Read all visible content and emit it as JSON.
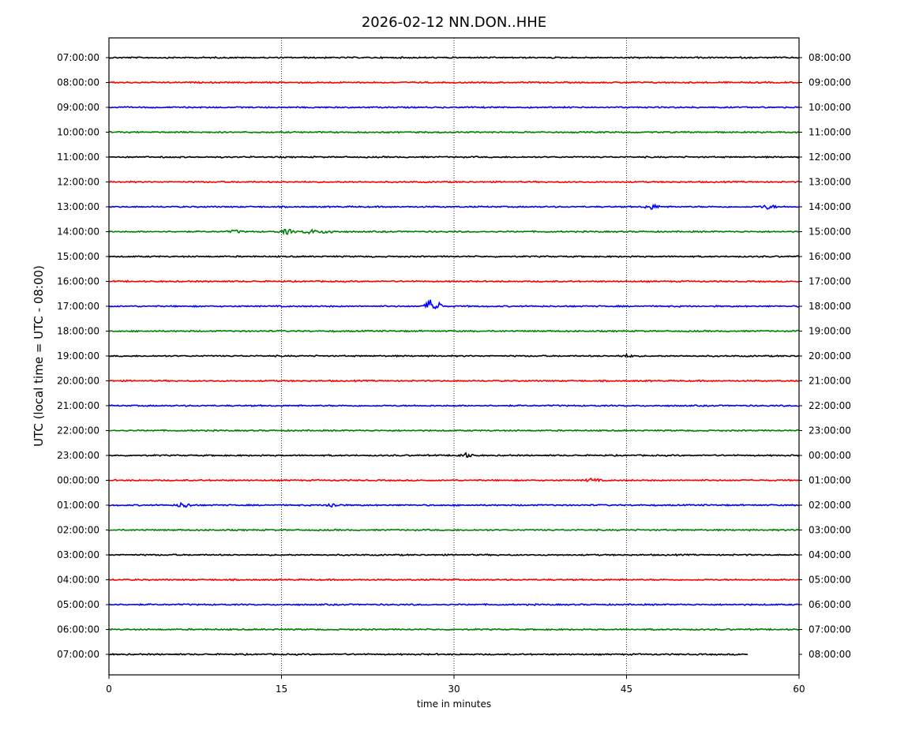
{
  "chart_data": {
    "type": "line",
    "title": "2026-02-12 NN.DON..HHE",
    "xlabel": "time in minutes",
    "ylabel": "UTC (local time = UTC - 08:00)",
    "xlim": [
      0,
      60
    ],
    "x_ticks": [
      "0",
      "15",
      "30",
      "45",
      "60"
    ],
    "vertical_gridlines_at": [
      15,
      30,
      45
    ],
    "trace_colors": [
      "#000000",
      "#ff0000",
      "#0000ff",
      "#008000"
    ],
    "last_trace_end_minute": 55.5,
    "left_labels": [
      "07:00:00",
      "08:00:00",
      "09:00:00",
      "10:00:00",
      "11:00:00",
      "12:00:00",
      "13:00:00",
      "14:00:00",
      "15:00:00",
      "16:00:00",
      "17:00:00",
      "18:00:00",
      "19:00:00",
      "20:00:00",
      "21:00:00",
      "22:00:00",
      "23:00:00",
      "00:00:00",
      "01:00:00",
      "02:00:00",
      "03:00:00",
      "04:00:00",
      "05:00:00",
      "06:00:00",
      "07:00:00"
    ],
    "right_labels": [
      "08:00:00",
      "09:00:00",
      "10:00:00",
      "11:00:00",
      "12:00:00",
      "13:00:00",
      "14:00:00",
      "15:00:00",
      "16:00:00",
      "17:00:00",
      "18:00:00",
      "19:00:00",
      "20:00:00",
      "21:00:00",
      "22:00:00",
      "23:00:00",
      "00:00:00",
      "01:00:00",
      "02:00:00",
      "03:00:00",
      "04:00:00",
      "05:00:00",
      "06:00:00",
      "07:00:00",
      "08:00:00"
    ],
    "events": [
      {
        "trace": 6,
        "minute": 47.2,
        "amplitude": 0.6
      },
      {
        "trace": 6,
        "minute": 57.3,
        "amplitude": 0.5
      },
      {
        "trace": 7,
        "minute": 15.5,
        "amplitude": 0.6
      },
      {
        "trace": 7,
        "minute": 17.5,
        "amplitude": 0.5
      },
      {
        "trace": 7,
        "minute": 19.0,
        "amplitude": 0.4
      },
      {
        "trace": 7,
        "minute": 11.0,
        "amplitude": 0.3
      },
      {
        "trace": 10,
        "minute": 28.2,
        "amplitude": 2.2
      },
      {
        "trace": 16,
        "minute": 31.0,
        "amplitude": 0.5
      },
      {
        "trace": 17,
        "minute": 42.0,
        "amplitude": 0.4
      },
      {
        "trace": 18,
        "minute": 6.5,
        "amplitude": 0.6
      },
      {
        "trace": 18,
        "minute": 19.5,
        "amplitude": 0.5
      },
      {
        "trace": 12,
        "minute": 45.0,
        "amplitude": 0.3
      }
    ]
  }
}
